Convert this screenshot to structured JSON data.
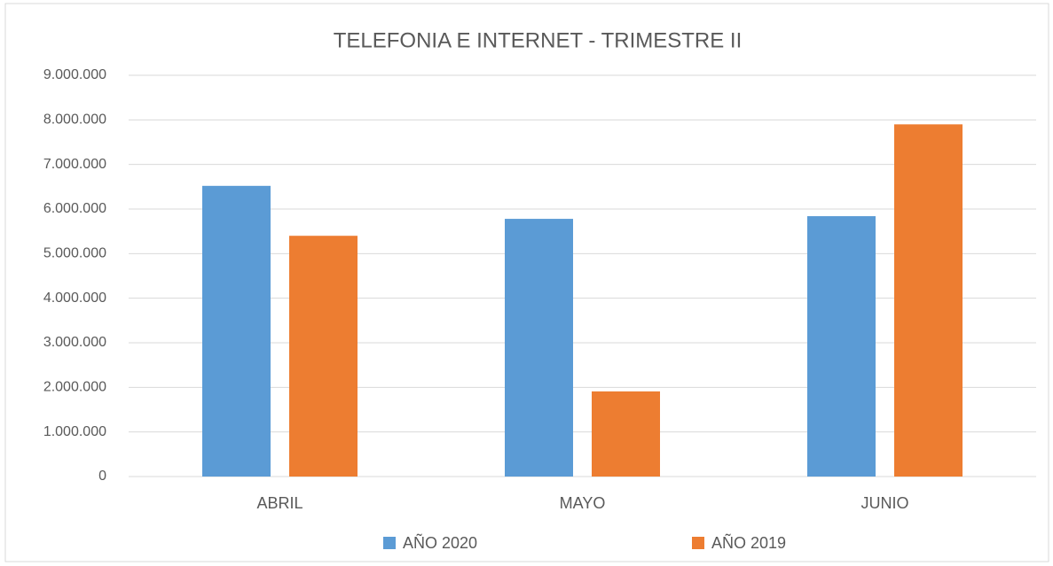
{
  "chart_data": {
    "type": "bar",
    "title": "TELEFONIA E INTERNET -  TRIMESTRE  II",
    "categories": [
      "ABRIL",
      "MAYO",
      "JUNIO"
    ],
    "series": [
      {
        "name": "AÑO 2020",
        "color": "#5b9bd5",
        "values": [
          6520000,
          5780000,
          5840000
        ]
      },
      {
        "name": "AÑO 2019",
        "color": "#ed7d31",
        "values": [
          5400000,
          1910000,
          7900000
        ]
      }
    ],
    "ylim": [
      0,
      9000000
    ],
    "yticks": [
      0,
      {
        "value": 1000000,
        "label": "1.000.000"
      },
      {
        "value": 2000000,
        "label": "2.000.000"
      },
      {
        "value": 3000000,
        "label": "3.000.000"
      },
      {
        "value": 4000000,
        "label": "4.000.000"
      },
      {
        "value": 5000000,
        "label": "5.000.000"
      },
      {
        "value": 6000000,
        "label": "6.000.000"
      },
      {
        "value": 7000000,
        "label": "7.000.000"
      },
      {
        "value": 8000000,
        "label": "8.000.000"
      },
      {
        "value": 9000000,
        "label": "9.000.000"
      }
    ],
    "grid": true,
    "legend": "bottom"
  }
}
